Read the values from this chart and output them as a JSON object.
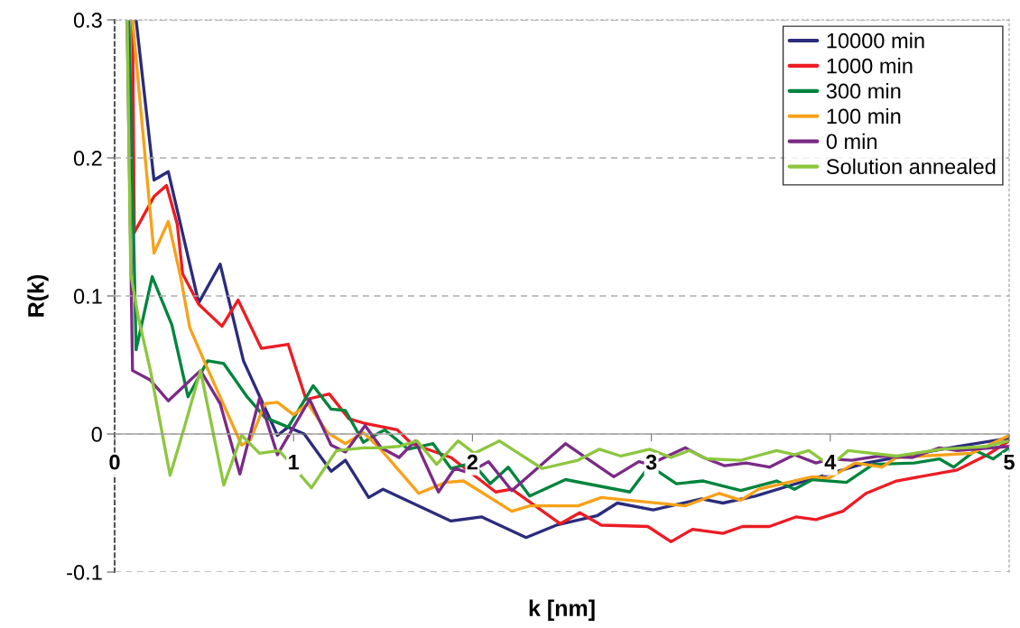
{
  "chart_data": {
    "type": "line",
    "xlabel": "k [nm]",
    "ylabel": "R(k)",
    "xlim": [
      0,
      5
    ],
    "ylim": [
      -0.1,
      0.3
    ],
    "xticks": [
      0,
      1,
      2,
      3,
      4,
      5
    ],
    "yticks": [
      -0.1,
      0,
      0.1,
      0.2,
      0.3
    ],
    "grid": "y",
    "legend": "top right",
    "marker": "none",
    "line_style": "solid",
    "series": [
      {
        "name": "10000 min",
        "color": "#2b2c7c",
        "x": [
          0.12,
          0.22,
          0.3,
          0.47,
          0.59,
          0.72,
          0.91,
          0.97,
          1.06,
          1.21,
          1.29,
          1.42,
          1.5,
          1.88,
          2.05,
          2.3,
          2.47,
          2.7,
          2.81,
          3.01,
          3.28,
          3.4,
          3.58,
          3.86,
          4.2,
          4.71,
          5.0
        ],
        "values": [
          0.3,
          0.184,
          0.19,
          0.095,
          0.123,
          0.053,
          -0.001,
          0.005,
          0.0,
          -0.027,
          -0.019,
          -0.046,
          -0.04,
          -0.063,
          -0.06,
          -0.075,
          -0.066,
          -0.059,
          -0.05,
          -0.055,
          -0.047,
          -0.05,
          -0.045,
          -0.034,
          -0.021,
          -0.009,
          -0.003
        ]
      },
      {
        "name": "1000 min",
        "color": "#ed1c24",
        "x": [
          0.1,
          0.11,
          0.22,
          0.29,
          0.35,
          0.38,
          0.47,
          0.6,
          0.69,
          0.82,
          0.97,
          1.07,
          1.2,
          1.31,
          1.39,
          1.58,
          1.66,
          1.88,
          2.13,
          2.22,
          2.49,
          2.6,
          2.72,
          2.98,
          3.11,
          3.23,
          3.4,
          3.51,
          3.66,
          3.81,
          3.92,
          4.07,
          4.2,
          4.37,
          4.71,
          4.88,
          5.0
        ],
        "values": [
          0.3,
          0.146,
          0.172,
          0.18,
          0.152,
          0.116,
          0.094,
          0.078,
          0.097,
          0.062,
          0.065,
          0.025,
          0.029,
          0.011,
          0.008,
          0.003,
          -0.007,
          -0.017,
          -0.042,
          -0.04,
          -0.065,
          -0.057,
          -0.066,
          -0.067,
          -0.078,
          -0.069,
          -0.072,
          -0.067,
          -0.067,
          -0.06,
          -0.062,
          -0.056,
          -0.043,
          -0.034,
          -0.026,
          -0.015,
          -0.005
        ]
      },
      {
        "name": "300 min",
        "color": "#00843d",
        "x": [
          0.08,
          0.12,
          0.21,
          0.32,
          0.41,
          0.52,
          0.61,
          0.74,
          0.84,
          0.97,
          1.11,
          1.21,
          1.29,
          1.39,
          1.48,
          1.51,
          1.64,
          1.78,
          1.88,
          2.0,
          2.1,
          2.2,
          2.32,
          2.52,
          2.88,
          2.99,
          3.14,
          3.29,
          3.5,
          3.7,
          3.8,
          3.9,
          4.09,
          4.24,
          4.47,
          4.61,
          4.69,
          4.81,
          4.91,
          5.0
        ],
        "values": [
          0.3,
          0.061,
          0.114,
          0.079,
          0.027,
          0.053,
          0.051,
          0.027,
          0.012,
          0.005,
          0.035,
          0.018,
          0.017,
          -0.006,
          0.001,
          0.003,
          -0.011,
          -0.007,
          -0.025,
          -0.021,
          -0.036,
          -0.024,
          -0.045,
          -0.033,
          -0.042,
          -0.023,
          -0.036,
          -0.034,
          -0.041,
          -0.034,
          -0.04,
          -0.033,
          -0.035,
          -0.022,
          -0.021,
          -0.018,
          -0.024,
          -0.012,
          -0.018,
          -0.01
        ]
      },
      {
        "name": "100 min",
        "color": "#f7a11a",
        "x": [
          0.1,
          0.22,
          0.3,
          0.37,
          0.42,
          0.5,
          0.62,
          0.71,
          0.76,
          0.84,
          0.91,
          1.0,
          1.08,
          1.19,
          1.29,
          1.39,
          1.48,
          1.7,
          1.85,
          1.95,
          2.22,
          2.32,
          2.59,
          2.72,
          3.19,
          3.38,
          3.5,
          3.6,
          3.9,
          3.99,
          4.14,
          4.29,
          4.37,
          4.79,
          5.0
        ],
        "values": [
          0.3,
          0.131,
          0.154,
          0.113,
          0.077,
          0.053,
          0.018,
          -0.008,
          -0.004,
          0.022,
          0.023,
          0.014,
          0.022,
          0.001,
          -0.007,
          0.001,
          -0.01,
          -0.043,
          -0.035,
          -0.034,
          -0.056,
          -0.052,
          -0.052,
          -0.046,
          -0.052,
          -0.043,
          -0.048,
          -0.04,
          -0.031,
          -0.032,
          -0.021,
          -0.024,
          -0.017,
          -0.014,
          -0.001
        ]
      },
      {
        "name": "0 min",
        "color": "#7b2a86",
        "x": [
          0.07,
          0.1,
          0.2,
          0.3,
          0.48,
          0.59,
          0.7,
          0.81,
          0.91,
          1.09,
          1.21,
          1.29,
          1.4,
          1.49,
          1.59,
          1.68,
          1.81,
          1.9,
          1.98,
          2.09,
          2.22,
          2.52,
          2.79,
          2.93,
          2.99,
          3.19,
          3.29,
          3.41,
          3.53,
          3.66,
          3.8,
          3.92,
          4.0,
          4.12,
          4.27,
          4.46,
          4.61,
          4.71,
          5.0
        ],
        "values": [
          0.3,
          0.046,
          0.039,
          0.024,
          0.046,
          0.022,
          -0.029,
          0.026,
          -0.015,
          0.025,
          -0.008,
          -0.013,
          0.006,
          -0.01,
          -0.017,
          -0.005,
          -0.042,
          -0.025,
          -0.028,
          -0.02,
          -0.041,
          -0.007,
          -0.031,
          -0.02,
          -0.022,
          -0.01,
          -0.017,
          -0.023,
          -0.021,
          -0.024,
          -0.015,
          -0.021,
          -0.018,
          -0.019,
          -0.016,
          -0.017,
          -0.01,
          -0.012,
          -0.009
        ]
      },
      {
        "name": "Solution annealed",
        "color": "#8dc63f",
        "x": [
          0.07,
          0.09,
          0.13,
          0.2,
          0.31,
          0.39,
          0.48,
          0.61,
          0.71,
          0.81,
          0.92,
          1.1,
          1.24,
          1.39,
          1.48,
          1.59,
          1.69,
          1.8,
          1.92,
          2.01,
          2.15,
          2.39,
          2.59,
          2.71,
          2.83,
          2.99,
          3.11,
          3.21,
          3.31,
          3.5,
          3.7,
          3.8,
          3.88,
          4.0,
          4.1,
          4.37,
          4.62,
          4.87,
          5.0
        ],
        "values": [
          0.3,
          0.116,
          0.086,
          0.046,
          -0.03,
          0.005,
          0.046,
          -0.037,
          -0.001,
          -0.014,
          -0.012,
          -0.039,
          -0.012,
          -0.01,
          -0.01,
          -0.009,
          -0.005,
          -0.022,
          -0.005,
          -0.014,
          -0.005,
          -0.025,
          -0.019,
          -0.011,
          -0.016,
          -0.011,
          -0.017,
          -0.012,
          -0.018,
          -0.019,
          -0.012,
          -0.015,
          -0.012,
          -0.023,
          -0.012,
          -0.016,
          -0.011,
          -0.009,
          -0.005
        ]
      }
    ]
  }
}
